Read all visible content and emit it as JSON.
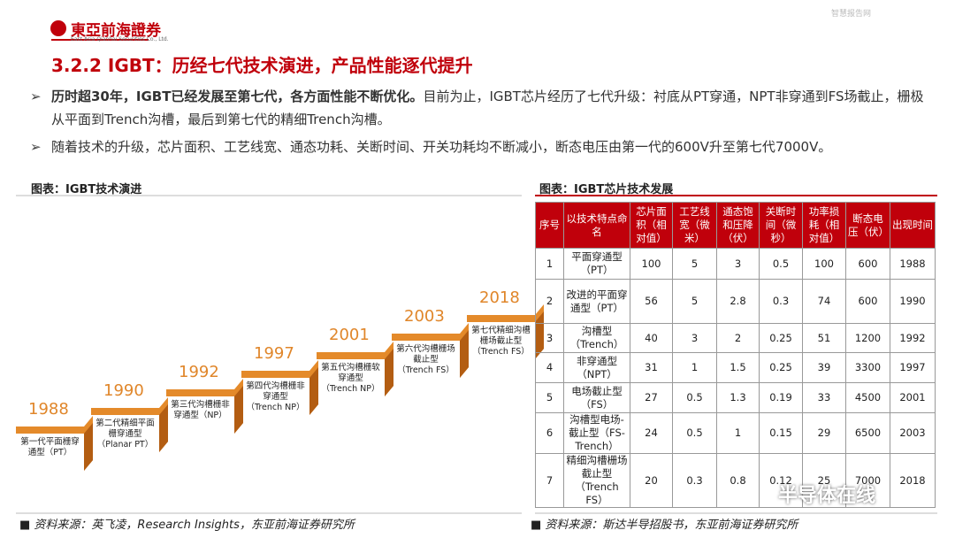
{
  "header": {
    "brand": "東亞前海證券",
    "brand_en": "East Asia Qianhai Securities Co., Ltd.",
    "watermark": "智慧报告网"
  },
  "title": "3.2.2 IGBT：历经七代技术演进，产品性能逐代提升",
  "bullets": [
    {
      "bold": "历时超30年，IGBT已经发展至第七代，各方面性能不断优化。",
      "text": "目前为止，IGBT芯片经历了七代升级：衬底从PT穿通，NPT非穿通到FS场截止，栅极从平面到Trench沟槽，最后到第七代的精细Trench沟槽。"
    },
    {
      "bold": "",
      "text": "随着技术的升级，芯片面积、工艺线宽、通态功耗、关断时间、开关功耗均不断减小，断态电压由第一代的600V升至第七代7000V。"
    }
  ],
  "evolution": {
    "caption": "图表：IGBT技术演进",
    "steps": [
      {
        "year": "1988",
        "label": "第一代平面栅穿通型（PT）"
      },
      {
        "year": "1990",
        "label": "第二代精细平面栅穿通型（Planar PT）"
      },
      {
        "year": "1992",
        "label": "第三代沟槽栅非穿通型（NP）"
      },
      {
        "year": "1997",
        "label": "第四代沟槽栅非穿通型（Trench NP）"
      },
      {
        "year": "2001",
        "label": "第五代沟槽栅软穿通型（Trench NP）"
      },
      {
        "year": "2003",
        "label": "第六代沟槽栅场截止型（Trench FS）"
      },
      {
        "year": "2018",
        "label": "第七代精细沟槽栅场截止型（Trench FS）"
      }
    ],
    "source": "资料来源：英飞凌，Research Insights，东亚前海证券研究所"
  },
  "table": {
    "caption": "图表：IGBT芯片技术发展",
    "header": [
      "序号",
      "以技术特点命名",
      "芯片面积（相对值）",
      "工艺线宽（微米）",
      "通态饱和压降（伏）",
      "关断时间（微秒）",
      "功率损耗（相对值）",
      "断态电压（伏）",
      "出现时间"
    ],
    "rows": [
      [
        1,
        "平面穿通型（PT）",
        100,
        5,
        3,
        0.5,
        100,
        600,
        1988
      ],
      [
        2,
        "改进的平面穿通型（PT）",
        56,
        5,
        2.8,
        0.3,
        74,
        600,
        1990
      ],
      [
        3,
        "沟槽型（Trench）",
        40,
        3,
        2,
        0.25,
        51,
        1200,
        1992
      ],
      [
        4,
        "非穿通型（NPT）",
        31,
        1,
        1.5,
        0.25,
        39,
        3300,
        1997
      ],
      [
        5,
        "电场截止型（FS）",
        27,
        0.5,
        1.3,
        0.19,
        33,
        4500,
        2001
      ],
      [
        6,
        "沟槽型电场-截止型（FS-Trench）",
        24,
        0.5,
        1,
        0.15,
        29,
        6500,
        2003
      ],
      [
        7,
        "精细沟槽栅场截止型（Trench FS）",
        20,
        0.3,
        0.8,
        0.12,
        25,
        7000,
        2018
      ]
    ],
    "source": "资料来源：斯达半导招股书，东亚前海证券研究所"
  },
  "overlay": "半导体在线"
}
